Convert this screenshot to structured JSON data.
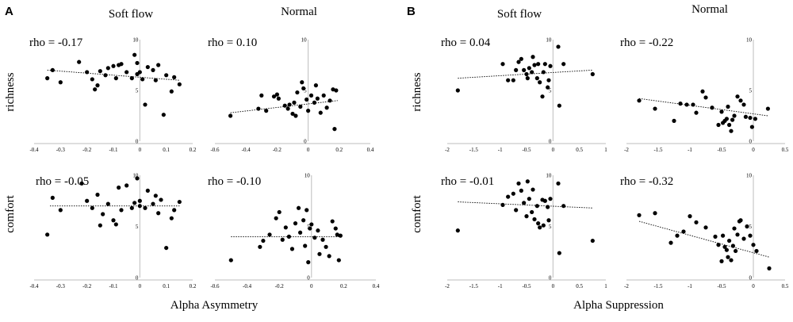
{
  "figure": {
    "panels": [
      {
        "letter": "A",
        "xlabel": "Alpha Asymmetry"
      },
      {
        "letter": "B",
        "xlabel": "Alpha Suppression"
      }
    ],
    "column_titles": [
      "Soft flow",
      "Normal",
      "Soft flow",
      "Normal"
    ],
    "row_labels": [
      "richness",
      "comfort"
    ]
  },
  "chart_data": [
    {
      "type": "scatter",
      "panel": "A",
      "column": "Soft flow",
      "row": "richness",
      "annotation": "rho = -0.17",
      "xlim": [
        -0.4,
        0.2
      ],
      "xticks": [
        "-0.4",
        "-0.3",
        "-0.2",
        "-0.1",
        "0",
        "0.1",
        "0.2"
      ],
      "ylim": [
        0,
        10
      ],
      "yticks": [
        "10",
        "5",
        "0"
      ],
      "trend": [
        [
          -0.35,
          7.0
        ],
        [
          0.15,
          6.0
        ]
      ],
      "x": [
        -0.35,
        -0.33,
        -0.3,
        -0.23,
        -0.2,
        -0.18,
        -0.17,
        -0.16,
        -0.15,
        -0.13,
        -0.12,
        -0.1,
        -0.09,
        -0.08,
        -0.07,
        -0.05,
        -0.03,
        -0.02,
        -0.01,
        -0.01,
        0.0,
        0.01,
        0.02,
        0.03,
        0.05,
        0.06,
        0.07,
        0.09,
        0.1,
        0.12,
        0.13,
        0.15
      ],
      "y": [
        6.2,
        7.0,
        5.8,
        7.8,
        6.8,
        6.1,
        5.1,
        5.5,
        6.9,
        6.5,
        7.2,
        7.4,
        6.2,
        7.5,
        7.6,
        6.8,
        6.2,
        8.5,
        6.6,
        7.7,
        6.8,
        6.1,
        3.6,
        7.3,
        7.0,
        6.0,
        7.5,
        2.6,
        6.5,
        4.9,
        6.3,
        5.6
      ]
    },
    {
      "type": "scatter",
      "panel": "A",
      "column": "Normal",
      "row": "richness",
      "annotation": "rho = 0.10",
      "xlim": [
        -0.6,
        0.4
      ],
      "xticks": [
        "-0.6",
        "-0.4",
        "-0.2",
        "0",
        "0.2",
        "0.4"
      ],
      "ylim": [
        0,
        10
      ],
      "yticks": [
        "10",
        "5",
        "0"
      ],
      "trend": [
        [
          -0.5,
          2.8
        ],
        [
          0.19,
          4.0
        ]
      ],
      "x": [
        -0.5,
        -0.32,
        -0.3,
        -0.27,
        -0.22,
        -0.2,
        -0.19,
        -0.15,
        -0.13,
        -0.12,
        -0.1,
        -0.09,
        -0.08,
        -0.07,
        -0.05,
        -0.04,
        -0.03,
        -0.01,
        0.0,
        0.02,
        0.04,
        0.05,
        0.06,
        0.08,
        0.1,
        0.12,
        0.14,
        0.16,
        0.17,
        0.18
      ],
      "y": [
        2.5,
        3.2,
        4.5,
        3.0,
        4.4,
        4.6,
        4.2,
        3.5,
        3.2,
        3.6,
        2.7,
        3.8,
        2.5,
        4.8,
        3.4,
        5.8,
        5.2,
        4.1,
        3.0,
        4.5,
        3.8,
        5.5,
        4.2,
        2.8,
        4.5,
        3.3,
        4.0,
        5.1,
        1.2,
        5.0
      ]
    },
    {
      "type": "scatter",
      "panel": "A",
      "column": "Soft flow",
      "row": "comfort",
      "annotation": "rho = -0.05",
      "xlim": [
        -0.4,
        0.2
      ],
      "xticks": [
        "-0.4",
        "-0.3",
        "-0.2",
        "-0.1",
        "0",
        "0.1",
        "0.2"
      ],
      "ylim": [
        0,
        10
      ],
      "yticks": [
        "10",
        "5",
        "0"
      ],
      "trend": [
        [
          -0.34,
          7.0
        ],
        [
          0.15,
          7.0
        ]
      ],
      "x": [
        -0.35,
        -0.33,
        -0.3,
        -0.22,
        -0.2,
        -0.18,
        -0.16,
        -0.15,
        -0.14,
        -0.12,
        -0.1,
        -0.09,
        -0.08,
        -0.07,
        -0.05,
        -0.03,
        -0.02,
        -0.01,
        0.0,
        0.0,
        0.02,
        0.03,
        0.05,
        0.06,
        0.07,
        0.08,
        0.1,
        0.12,
        0.13,
        0.15
      ],
      "y": [
        4.2,
        7.8,
        6.6,
        9.2,
        7.5,
        6.8,
        8.1,
        5.1,
        6.2,
        7.2,
        5.6,
        5.2,
        8.8,
        6.6,
        9.0,
        6.8,
        7.3,
        9.7,
        7.5,
        7.0,
        6.8,
        8.5,
        7.2,
        8.0,
        6.3,
        7.6,
        2.9,
        5.8,
        6.6,
        7.4
      ]
    },
    {
      "type": "scatter",
      "panel": "A",
      "column": "Normal",
      "row": "comfort",
      "annotation": "rho = -0.10",
      "xlim": [
        -0.6,
        0.4
      ],
      "xticks": [
        "-0.6",
        "-0.4",
        "-0.2",
        "0",
        "0.2",
        "0.4"
      ],
      "ylim": [
        0,
        10
      ],
      "yticks": [
        "10",
        "5",
        "0"
      ],
      "trend": [
        [
          -0.5,
          4.0
        ],
        [
          0.19,
          4.0
        ]
      ],
      "x": [
        -0.5,
        -0.32,
        -0.3,
        -0.26,
        -0.22,
        -0.2,
        -0.18,
        -0.16,
        -0.14,
        -0.12,
        -0.1,
        -0.08,
        -0.07,
        -0.05,
        -0.04,
        -0.03,
        -0.02,
        -0.01,
        0.0,
        0.02,
        0.04,
        0.05,
        0.07,
        0.09,
        0.11,
        0.13,
        0.15,
        0.16,
        0.17,
        0.18
      ],
      "y": [
        1.7,
        3.0,
        3.6,
        4.2,
        5.8,
        6.4,
        3.7,
        4.9,
        4.0,
        2.8,
        5.3,
        6.8,
        4.4,
        5.6,
        3.1,
        6.6,
        1.5,
        4.8,
        5.2,
        3.9,
        4.6,
        2.3,
        3.7,
        3.0,
        2.1,
        5.5,
        4.8,
        4.2,
        1.7,
        4.1
      ]
    },
    {
      "type": "scatter",
      "panel": "B",
      "column": "Soft flow",
      "row": "richness",
      "annotation": "rho = 0.04",
      "xlim": [
        -2.0,
        1.0
      ],
      "xticks": [
        "-2",
        "-1.5",
        "-1",
        "-0.5",
        "0",
        "0.5",
        "1"
      ],
      "ylim": [
        0,
        10
      ],
      "yticks": [
        "10",
        "5",
        "0"
      ],
      "trend": [
        [
          -1.8,
          6.2
        ],
        [
          0.75,
          7.0
        ]
      ],
      "x": [
        -1.8,
        -0.95,
        -0.85,
        -0.75,
        -0.7,
        -0.65,
        -0.6,
        -0.55,
        -0.5,
        -0.48,
        -0.45,
        -0.4,
        -0.38,
        -0.35,
        -0.3,
        -0.28,
        -0.25,
        -0.2,
        -0.18,
        -0.15,
        -0.1,
        -0.08,
        -0.05,
        0.1,
        0.12,
        0.2,
        0.75
      ],
      "y": [
        5.0,
        7.6,
        6.0,
        6.0,
        7.0,
        7.8,
        8.1,
        7.0,
        6.6,
        6.2,
        7.2,
        6.8,
        8.3,
        7.5,
        6.2,
        7.6,
        5.8,
        4.4,
        6.8,
        7.6,
        5.3,
        6.0,
        7.4,
        9.3,
        3.5,
        7.6,
        6.6
      ]
    },
    {
      "type": "scatter",
      "panel": "B",
      "column": "Normal",
      "row": "richness",
      "annotation": "rho = -0.22",
      "xlim": [
        -2.0,
        0.5
      ],
      "xticks": [
        "-2",
        "-1.5",
        "-1",
        "-0.5",
        "0",
        "0.5"
      ],
      "ylim": [
        0,
        10
      ],
      "yticks": [
        "10",
        "5",
        "0"
      ],
      "trend": [
        [
          -1.8,
          4.2
        ],
        [
          0.23,
          2.5
        ]
      ],
      "x": [
        -1.8,
        -1.55,
        -1.25,
        -1.15,
        -1.05,
        -0.95,
        -0.9,
        -0.8,
        -0.75,
        -0.65,
        -0.55,
        -0.5,
        -0.48,
        -0.45,
        -0.42,
        -0.4,
        -0.38,
        -0.35,
        -0.33,
        -0.3,
        -0.25,
        -0.2,
        -0.15,
        -0.12,
        -0.05,
        -0.02,
        0.03,
        0.23
      ],
      "y": [
        4.0,
        3.2,
        2.0,
        3.7,
        3.6,
        3.6,
        2.8,
        4.9,
        4.3,
        3.3,
        1.6,
        2.9,
        1.8,
        2.0,
        2.2,
        3.4,
        1.6,
        1.0,
        2.1,
        2.5,
        4.4,
        4.0,
        3.6,
        2.4,
        2.3,
        1.4,
        2.2,
        3.2
      ]
    },
    {
      "type": "scatter",
      "panel": "B",
      "column": "Soft flow",
      "row": "comfort",
      "annotation": "rho = -0.01",
      "xlim": [
        -2.0,
        1.0
      ],
      "xticks": [
        "-2",
        "-1.5",
        "-1",
        "-0.5",
        "0",
        "0.5",
        "1"
      ],
      "ylim": [
        0,
        10
      ],
      "yticks": [
        "10",
        "5",
        "0"
      ],
      "trend": [
        [
          -1.8,
          7.4
        ],
        [
          0.75,
          6.8
        ]
      ],
      "x": [
        -1.8,
        -0.95,
        -0.85,
        -0.75,
        -0.7,
        -0.65,
        -0.6,
        -0.55,
        -0.5,
        -0.48,
        -0.45,
        -0.4,
        -0.38,
        -0.35,
        -0.3,
        -0.28,
        -0.25,
        -0.2,
        -0.18,
        -0.15,
        -0.1,
        -0.08,
        -0.05,
        0.1,
        0.12,
        0.2,
        0.75
      ],
      "y": [
        4.6,
        7.1,
        7.9,
        8.2,
        6.6,
        9.2,
        8.5,
        7.3,
        6.0,
        9.4,
        7.7,
        6.4,
        8.6,
        5.7,
        7.0,
        5.3,
        4.9,
        7.6,
        5.1,
        7.5,
        6.9,
        5.6,
        7.7,
        9.2,
        2.4,
        7.0,
        3.6
      ]
    },
    {
      "type": "scatter",
      "panel": "B",
      "column": "Normal",
      "row": "comfort",
      "annotation": "rho = -0.32",
      "xlim": [
        -2.0,
        0.5
      ],
      "xticks": [
        "-2",
        "-1.5",
        "-1",
        "-0.5",
        "0",
        "0.5"
      ],
      "ylim": [
        0,
        10
      ],
      "yticks": [
        "10",
        "5",
        "0"
      ],
      "trend": [
        [
          -1.8,
          5.5
        ],
        [
          0.25,
          2.0
        ]
      ],
      "x": [
        -1.8,
        -1.55,
        -1.3,
        -1.2,
        -1.1,
        -1.0,
        -0.9,
        -0.75,
        -0.6,
        -0.55,
        -0.5,
        -0.48,
        -0.45,
        -0.42,
        -0.4,
        -0.38,
        -0.35,
        -0.32,
        -0.3,
        -0.28,
        -0.25,
        -0.22,
        -0.2,
        -0.15,
        -0.1,
        -0.05,
        0.0,
        0.05,
        0.25
      ],
      "y": [
        6.1,
        6.3,
        3.4,
        4.1,
        4.5,
        6.0,
        5.4,
        4.9,
        4.0,
        3.2,
        1.6,
        4.1,
        3.0,
        2.7,
        2.0,
        3.6,
        1.7,
        3.1,
        4.8,
        2.6,
        4.2,
        5.5,
        5.6,
        3.8,
        5.0,
        4.1,
        3.2,
        2.6,
        0.9
      ]
    }
  ]
}
